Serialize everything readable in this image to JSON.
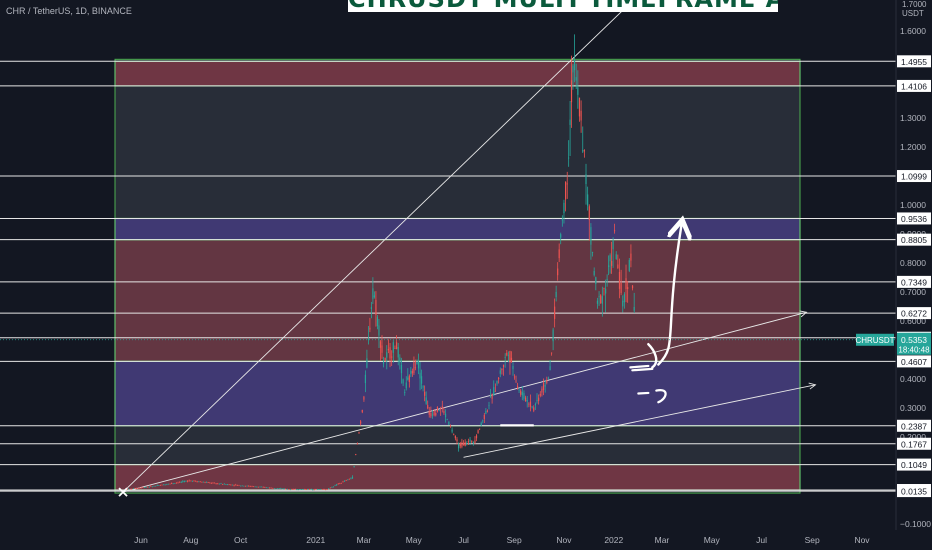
{
  "header": {
    "symbol_line": "CHR / TetherUS, 1D, BINANCE"
  },
  "title_banner": "CHRUSDT MULTI TIMEFRAME ANALYSIS",
  "price_axis": {
    "unit_top": "1.7000",
    "unit": "USDT"
  },
  "chart_data": {
    "type": "line",
    "title": "CHRUSDT MULTI TIMEFRAME ANALYSIS",
    "symbol": "CHR / TetherUS",
    "interval": "1D",
    "exchange": "BINANCE",
    "ylim": [
      -0.1,
      1.7
    ],
    "y_ticks": [
      1.6,
      1.3,
      1.2,
      1.0,
      0.9,
      0.8,
      0.7,
      0.6,
      0.5,
      0.4,
      0.3,
      0.2,
      -0.1
    ],
    "y_tick_labels": [
      "1.6000",
      "1.3000",
      "1.2000",
      "1.0000",
      "0.9000",
      "0.8000",
      "0.7000",
      "0.6000",
      "0.5000",
      "0.4000",
      "0.3000",
      "0.2000",
      "−0.1000"
    ],
    "x_ticks": [
      {
        "label": "Jun",
        "date": "2020-06-01"
      },
      {
        "label": "Aug",
        "date": "2020-08-01"
      },
      {
        "label": "Oct",
        "date": "2020-10-01"
      },
      {
        "label": "2021",
        "date": "2021-01-01"
      },
      {
        "label": "Mar",
        "date": "2021-03-01"
      },
      {
        "label": "May",
        "date": "2021-05-01"
      },
      {
        "label": "Jul",
        "date": "2021-07-01"
      },
      {
        "label": "Sep",
        "date": "2021-09-01"
      },
      {
        "label": "Nov",
        "date": "2021-11-01"
      },
      {
        "label": "2022",
        "date": "2022-01-01"
      },
      {
        "label": "Mar",
        "date": "2022-03-01"
      },
      {
        "label": "May",
        "date": "2022-05-01"
      },
      {
        "label": "Jul",
        "date": "2022-07-01"
      },
      {
        "label": "Sep",
        "date": "2022-09-01"
      },
      {
        "label": "Nov",
        "date": "2022-11-01"
      }
    ],
    "horizontal_levels": [
      1.4955,
      1.4106,
      1.0999,
      0.9536,
      0.8805,
      0.7349,
      0.6272,
      0.5423,
      0.4607,
      0.2387,
      0.1767,
      0.1049,
      0.0172,
      0.0135
    ],
    "level_labels": [
      "1.4955",
      "1.4106",
      "1.0999",
      "0.9536",
      "0.8805",
      "0.7349",
      "0.6272",
      "0.5423",
      "0.4607",
      "0.2387",
      "0.1767",
      "0.1049",
      "0.0172",
      "0.0135"
    ],
    "zones": [
      {
        "type": "supply",
        "from": 1.4106,
        "to": 1.4955,
        "color": "#8b3a4a"
      },
      {
        "type": "supply",
        "from": 0.4607,
        "to": 0.8805,
        "color": "#7a3a46"
      },
      {
        "type": "key-range",
        "from": 0.8805,
        "to": 0.9536,
        "color": "#4a3f8a"
      },
      {
        "type": "demand",
        "from": 0.2387,
        "to": 0.4607,
        "color": "#4a3f8a"
      },
      {
        "type": "demand",
        "from": 0.0172,
        "to": 0.1049,
        "color": "#8b3a4a"
      }
    ],
    "price_path": [
      [
        "2020-05-15",
        0.02
      ],
      [
        "2020-06-15",
        0.03
      ],
      [
        "2020-08-01",
        0.05
      ],
      [
        "2020-09-01",
        0.04
      ],
      [
        "2020-10-15",
        0.03
      ],
      [
        "2020-12-01",
        0.02
      ],
      [
        "2021-01-15",
        0.02
      ],
      [
        "2021-02-15",
        0.06
      ],
      [
        "2021-03-01",
        0.33
      ],
      [
        "2021-03-12",
        0.72
      ],
      [
        "2021-03-25",
        0.46
      ],
      [
        "2021-04-10",
        0.52
      ],
      [
        "2021-04-20",
        0.36
      ],
      [
        "2021-05-05",
        0.47
      ],
      [
        "2021-05-20",
        0.28
      ],
      [
        "2021-06-05",
        0.3
      ],
      [
        "2021-06-25",
        0.17
      ],
      [
        "2021-07-15",
        0.19
      ],
      [
        "2021-08-05",
        0.34
      ],
      [
        "2021-08-25",
        0.5
      ],
      [
        "2021-09-07",
        0.36
      ],
      [
        "2021-09-25",
        0.3
      ],
      [
        "2021-10-15",
        0.42
      ],
      [
        "2021-10-28",
        0.9
      ],
      [
        "2021-11-05",
        1.1
      ],
      [
        "2021-11-12",
        1.49
      ],
      [
        "2021-11-22",
        1.3
      ],
      [
        "2021-12-02",
        0.95
      ],
      [
        "2021-12-12",
        0.66
      ],
      [
        "2021-12-22",
        0.72
      ],
      [
        "2022-01-02",
        0.88
      ],
      [
        "2022-01-12",
        0.65
      ],
      [
        "2022-01-22",
        0.82
      ],
      [
        "2022-01-28",
        0.53
      ]
    ],
    "current_price": {
      "symbol": "CHRUSDT",
      "price": "0.5353",
      "countdown": "18:40:48",
      "color": "#26a69a"
    },
    "annotations": [
      {
        "type": "trendline",
        "from": [
          "2020-05-10",
          0.01
        ],
        "to": [
          "2022-01-30",
          1.72
        ]
      },
      {
        "type": "trendline",
        "from": [
          "2020-05-10",
          0.01
        ],
        "to": [
          "2022-08-25",
          0.63
        ]
      },
      {
        "type": "trendline",
        "from": [
          "2021-07-01",
          0.13
        ],
        "to": [
          "2022-09-05",
          0.38
        ]
      },
      {
        "type": "projection-arrow",
        "from": [
          "2022-02-05",
          0.45
        ],
        "to": [
          "2022-03-25",
          0.96
        ]
      }
    ]
  }
}
